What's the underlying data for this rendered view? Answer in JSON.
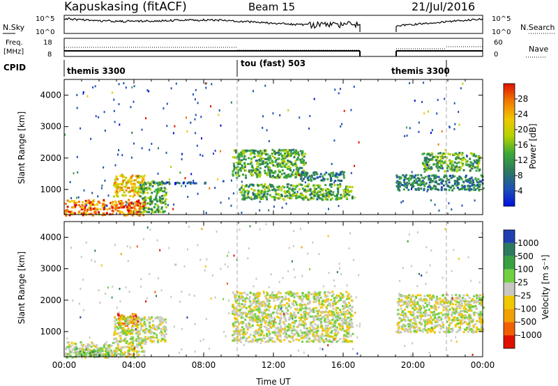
{
  "header": {
    "station": "Kapuskasing (fitACF)",
    "beam": "Beam 15",
    "date": "21/Jul/2016"
  },
  "nsky_panel": {
    "left_label": "N.Sky",
    "right_label": "N.Search",
    "left_ticks": [
      "10^5",
      "10^0"
    ],
    "right_ticks": [
      "10^5",
      "10^0"
    ]
  },
  "freq_panel": {
    "left_label_line1": "Freq.",
    "left_label_line2": "[MHz]",
    "right_label": "Nave",
    "left_ticks": [
      "18",
      "8"
    ],
    "right_ticks": [
      "60",
      "0"
    ]
  },
  "cpid_panel": {
    "label": "CPID",
    "segments": [
      {
        "text": "themis 3300",
        "start_hour": 0.0,
        "end_hour": 9.9
      },
      {
        "text": "tou (fast) 503",
        "start_hour": 9.9,
        "end_hour": 21.9
      },
      {
        "text": "themis 3300",
        "start_hour": 19.0,
        "end_hour": 21.9
      }
    ]
  },
  "chart_data": [
    {
      "type": "heatmap",
      "name": "power",
      "ylabel": "Slant Range [km]",
      "y_ticks": [
        "1000",
        "2000",
        "3000",
        "4000"
      ],
      "ylim": [
        200,
        4500
      ],
      "xlim": [
        0,
        24
      ],
      "colorbar_label": "Power [dB]",
      "colorbar_ticks": [
        "4",
        "8",
        "12",
        "16",
        "20",
        "24",
        "28"
      ],
      "colorbar_colors": [
        "#0010e0",
        "#1e50b4",
        "#2f7a5e",
        "#3aa83a",
        "#b4d200",
        "#f0c800",
        "#f07800",
        "#e01000"
      ],
      "regions": [
        {
          "x0": 0.0,
          "x1": 4.6,
          "y0": 200,
          "y1": 700,
          "level": 6
        },
        {
          "x0": 2.8,
          "x1": 4.6,
          "y0": 800,
          "y1": 1500,
          "level": 5
        },
        {
          "x0": 4.3,
          "x1": 5.8,
          "y0": 300,
          "y1": 1300,
          "level": 3
        },
        {
          "x0": 9.6,
          "x1": 13.8,
          "y0": 1400,
          "y1": 2300,
          "level": 3
        },
        {
          "x0": 10.0,
          "x1": 16.5,
          "y0": 700,
          "y1": 1200,
          "level": 3
        },
        {
          "x0": 13.5,
          "x1": 16.0,
          "y0": 1300,
          "y1": 1600,
          "level": 2
        },
        {
          "x0": 19.0,
          "x1": 24.0,
          "y0": 1000,
          "y1": 1500,
          "level": 2
        },
        {
          "x0": 20.5,
          "x1": 23.8,
          "y0": 1600,
          "y1": 2200,
          "level": 3
        },
        {
          "x0": 5.0,
          "x1": 8.3,
          "y0": 1200,
          "y1": 1260,
          "level": 1
        }
      ]
    },
    {
      "type": "heatmap",
      "name": "velocity",
      "ylabel": "Slant Range [km]",
      "xlabel": "Time UT",
      "x_ticks": [
        "00:00",
        "04:00",
        "08:00",
        "12:00",
        "16:00",
        "20:00",
        "00:00"
      ],
      "y_ticks": [
        "1000",
        "2000",
        "3000",
        "4000"
      ],
      "ylim": [
        200,
        4500
      ],
      "xlim": [
        0,
        24
      ],
      "colorbar_label": "Velocity [m s⁻¹]",
      "colorbar_ticks": [
        "1000",
        "500",
        "100",
        "25",
        "-25",
        "-100",
        "-500",
        "-1000"
      ],
      "colorbar_colors": [
        "#2040b0",
        "#2e7a5e",
        "#38a040",
        "#70d040",
        "#c8c8c0",
        "#f0c800",
        "#f0a000",
        "#f06000",
        "#e01000"
      ],
      "regions": [
        {
          "x0": 0.0,
          "x1": 4.6,
          "y0": 200,
          "y1": 700,
          "level": 4
        },
        {
          "x0": 0.0,
          "x1": 2.5,
          "y0": 200,
          "y1": 500,
          "level": 3
        },
        {
          "x0": 3.0,
          "x1": 4.2,
          "y0": 1200,
          "y1": 1600,
          "level": 7
        },
        {
          "x0": 2.8,
          "x1": 5.8,
          "y0": 700,
          "y1": 1500,
          "level": 4
        },
        {
          "x0": 9.6,
          "x1": 16.5,
          "y0": 700,
          "y1": 2300,
          "level": 4
        },
        {
          "x0": 19.0,
          "x1": 24.0,
          "y0": 1000,
          "y1": 2200,
          "level": 4
        }
      ]
    }
  ]
}
